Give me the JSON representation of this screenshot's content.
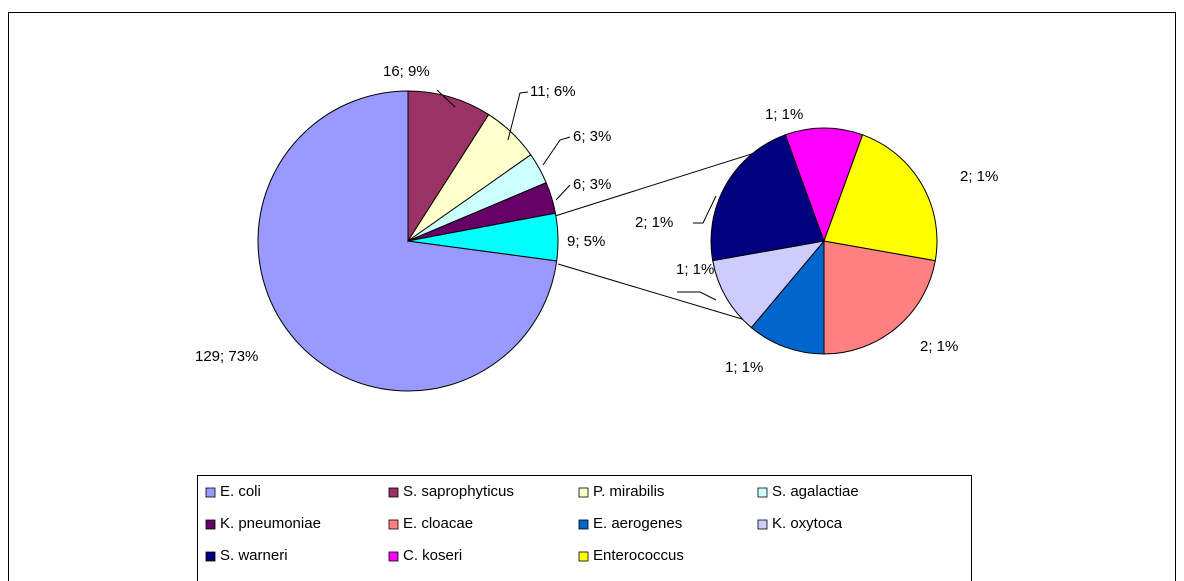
{
  "chart_data": {
    "type": "pie-of-pie",
    "pies": [
      {
        "categories": [
          "E. coli",
          "S. saprophyticus",
          "P. mirabilis",
          "S. agalactiae",
          "K. pneumoniae",
          null
        ],
        "values": [
          129,
          16,
          11,
          6,
          6,
          9
        ],
        "value_labels": [
          "129; 73%",
          "16; 9%",
          "11; 6%",
          "6; 3%",
          "6; 3%",
          "9; 5%"
        ],
        "colors": [
          "#9999ff",
          "#993366",
          "#ffffcc",
          "#ccffff",
          "#660066",
          "#00ffff"
        ]
      },
      {
        "categories": [
          "E. cloacae",
          "E. aerogenes",
          "K. oxytoca",
          "S. warneri",
          "C. koseri",
          "Enterococcus"
        ],
        "values": [
          2,
          1,
          1,
          2,
          1,
          2
        ],
        "value_labels": [
          "2; 1%",
          "1; 1%",
          "1; 1%",
          "2; 1%",
          "1; 1%",
          "2; 1%"
        ],
        "colors": [
          "#ff8080",
          "#0066cc",
          "#ccccff",
          "#000080",
          "#ff00ff",
          "#ffff00"
        ]
      }
    ],
    "legend": "bottom"
  }
}
